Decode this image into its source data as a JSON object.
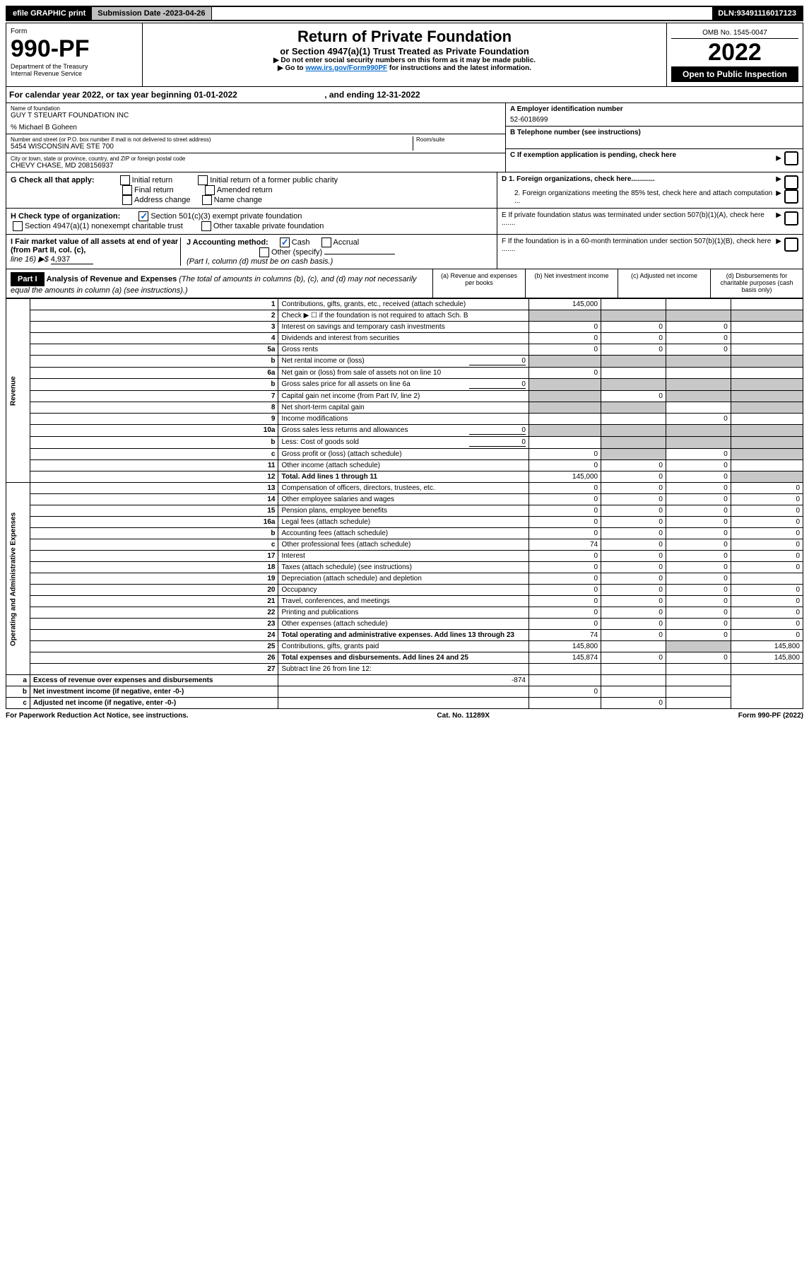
{
  "topbar": {
    "efile": "efile GRAPHIC print",
    "subdate_label": "Submission Date - ",
    "subdate": "2023-04-26",
    "dln_label": "DLN: ",
    "dln": "93491116017123"
  },
  "header": {
    "form_label": "Form",
    "form_num": "990-PF",
    "dept": "Department of the Treasury",
    "irs": "Internal Revenue Service",
    "title": "Return of Private Foundation",
    "subtitle": "or Section 4947(a)(1) Trust Treated as Private Foundation",
    "instr1": "▶ Do not enter social security numbers on this form as it may be made public.",
    "instr2_pre": "▶ Go to ",
    "instr2_link": "www.irs.gov/Form990PF",
    "instr2_post": " for instructions and the latest information.",
    "omb": "OMB No. 1545-0047",
    "year": "2022",
    "open": "Open to Public Inspection"
  },
  "cal": {
    "pre": "For calendar year 2022, or tax year beginning ",
    "begin": "01-01-2022",
    "mid": " , and ending ",
    "end": "12-31-2022"
  },
  "org": {
    "name_label": "Name of foundation",
    "name": "GUY T STEUART FOUNDATION INC",
    "care": "% Michael B Goheen",
    "addr_label": "Number and street (or P.O. box number if mail is not delivered to street address)",
    "addr": "5454 WISCONSIN AVE STE 700",
    "room_label": "Room/suite",
    "city_label": "City or town, state or province, country, and ZIP or foreign postal code",
    "city": "CHEVY CHASE, MD  208156937",
    "ein_label": "A Employer identification number",
    "ein": "52-6018699",
    "phone_label": "B Telephone number (see instructions)",
    "c_label": "C If exemption application is pending, check here",
    "d1": "D 1. Foreign organizations, check here............",
    "d2": "2. Foreign organizations meeting the 85% test, check here and attach computation ...",
    "e": "E  If private foundation status was terminated under section 507(b)(1)(A), check here .......",
    "f": "F  If the foundation is in a 60-month termination under section 507(b)(1)(B), check here .......",
    "g_label": "G Check all that apply:",
    "g_opts": [
      "Initial return",
      "Final return",
      "Address change",
      "Initial return of a former public charity",
      "Amended return",
      "Name change"
    ],
    "h_label": "H Check type of organization:",
    "h1": "Section 501(c)(3) exempt private foundation",
    "h2": "Section 4947(a)(1) nonexempt charitable trust",
    "h3": "Other taxable private foundation",
    "i_label": "I Fair market value of all assets at end of year (from Part II, col. (c),",
    "i_line": "line 16) ▶$ ",
    "i_val": "4,937",
    "j_label": "J Accounting method:",
    "j_cash": "Cash",
    "j_accrual": "Accrual",
    "j_other": "Other (specify)",
    "j_note": "(Part I, column (d) must be on cash basis.)"
  },
  "part1": {
    "label": "Part I",
    "title": "Analysis of Revenue and Expenses ",
    "title_note": "(The total of amounts in columns (b), (c), and (d) may not necessarily equal the amounts in column (a) (see instructions).)",
    "col_a": "(a)   Revenue and expenses per books",
    "col_b": "(b)   Net investment income",
    "col_c": "(c)   Adjusted net income",
    "col_d": "(d)   Disbursements for charitable purposes (cash basis only)"
  },
  "sections": {
    "revenue": "Revenue",
    "expenses": "Operating and Administrative Expenses"
  },
  "rows": [
    {
      "n": "1",
      "d": "Contributions, gifts, grants, etc., received (attach schedule)",
      "a": "145,000",
      "b": "",
      "c": "",
      "dd": ""
    },
    {
      "n": "2",
      "d": "Check ▶ ☐ if the foundation is not required to attach Sch. B",
      "dots": true
    },
    {
      "n": "3",
      "d": "Interest on savings and temporary cash investments",
      "a": "0",
      "b": "0",
      "c": "0"
    },
    {
      "n": "4",
      "d": "Dividends and interest from securities",
      "a": "0",
      "b": "0",
      "c": "0"
    },
    {
      "n": "5a",
      "d": "Gross rents",
      "a": "0",
      "b": "0",
      "c": "0"
    },
    {
      "n": "b",
      "d": "Net rental income or (loss)",
      "inline": "0"
    },
    {
      "n": "6a",
      "d": "Net gain or (loss) from sale of assets not on line 10",
      "a": "0"
    },
    {
      "n": "b",
      "d": "Gross sales price for all assets on line 6a",
      "inline": "0"
    },
    {
      "n": "7",
      "d": "Capital gain net income (from Part IV, line 2)",
      "b": "0"
    },
    {
      "n": "8",
      "d": "Net short-term capital gain"
    },
    {
      "n": "9",
      "d": "Income modifications",
      "c": "0"
    },
    {
      "n": "10a",
      "d": "Gross sales less returns and allowances",
      "inline": "0"
    },
    {
      "n": "b",
      "d": "Less: Cost of goods sold",
      "inline": "0"
    },
    {
      "n": "c",
      "d": "Gross profit or (loss) (attach schedule)",
      "a": "0",
      "c": "0"
    },
    {
      "n": "11",
      "d": "Other income (attach schedule)",
      "a": "0",
      "b": "0",
      "c": "0"
    },
    {
      "n": "12",
      "d": "Total. Add lines 1 through 11",
      "bold": true,
      "a": "145,000",
      "b": "0",
      "c": "0"
    },
    {
      "n": "13",
      "d": "Compensation of officers, directors, trustees, etc.",
      "a": "0",
      "b": "0",
      "c": "0",
      "dd": "0"
    },
    {
      "n": "14",
      "d": "Other employee salaries and wages",
      "a": "0",
      "b": "0",
      "c": "0",
      "dd": "0"
    },
    {
      "n": "15",
      "d": "Pension plans, employee benefits",
      "a": "0",
      "b": "0",
      "c": "0",
      "dd": "0"
    },
    {
      "n": "16a",
      "d": "Legal fees (attach schedule)",
      "a": "0",
      "b": "0",
      "c": "0",
      "dd": "0"
    },
    {
      "n": "b",
      "d": "Accounting fees (attach schedule)",
      "a": "0",
      "b": "0",
      "c": "0",
      "dd": "0"
    },
    {
      "n": "c",
      "d": "Other professional fees (attach schedule)",
      "a": "74",
      "b": "0",
      "c": "0",
      "dd": "0"
    },
    {
      "n": "17",
      "d": "Interest",
      "a": "0",
      "b": "0",
      "c": "0",
      "dd": "0"
    },
    {
      "n": "18",
      "d": "Taxes (attach schedule) (see instructions)",
      "a": "0",
      "b": "0",
      "c": "0",
      "dd": "0"
    },
    {
      "n": "19",
      "d": "Depreciation (attach schedule) and depletion",
      "a": "0",
      "b": "0",
      "c": "0"
    },
    {
      "n": "20",
      "d": "Occupancy",
      "a": "0",
      "b": "0",
      "c": "0",
      "dd": "0"
    },
    {
      "n": "21",
      "d": "Travel, conferences, and meetings",
      "a": "0",
      "b": "0",
      "c": "0",
      "dd": "0"
    },
    {
      "n": "22",
      "d": "Printing and publications",
      "a": "0",
      "b": "0",
      "c": "0",
      "dd": "0"
    },
    {
      "n": "23",
      "d": "Other expenses (attach schedule)",
      "a": "0",
      "b": "0",
      "c": "0",
      "dd": "0"
    },
    {
      "n": "24",
      "d": "Total operating and administrative expenses. Add lines 13 through 23",
      "bold": true,
      "a": "74",
      "b": "0",
      "c": "0",
      "dd": "0"
    },
    {
      "n": "25",
      "d": "Contributions, gifts, grants paid",
      "a": "145,800",
      "dd": "145,800"
    },
    {
      "n": "26",
      "d": "Total expenses and disbursements. Add lines 24 and 25",
      "bold": true,
      "a": "145,874",
      "b": "0",
      "c": "0",
      "dd": "145,800"
    },
    {
      "n": "27",
      "d": "Subtract line 26 from line 12:"
    },
    {
      "n": "a",
      "d": "Excess of revenue over expenses and disbursements",
      "bold": true,
      "a": "-874"
    },
    {
      "n": "b",
      "d": "Net investment income (if negative, enter -0-)",
      "bold": true,
      "b": "0"
    },
    {
      "n": "c",
      "d": "Adjusted net income (if negative, enter -0-)",
      "bold": true,
      "c": "0"
    }
  ],
  "footer": {
    "left": "For Paperwork Reduction Act Notice, see instructions.",
    "mid": "Cat. No. 11289X",
    "right": "Form 990-PF (2022)"
  }
}
